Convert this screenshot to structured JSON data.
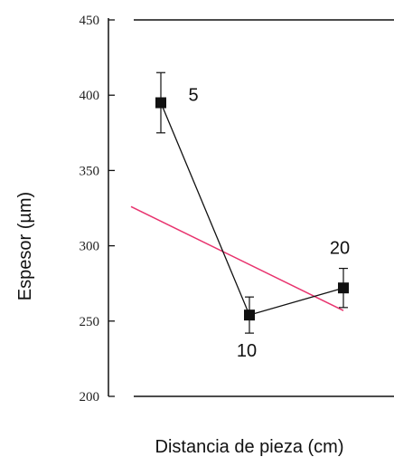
{
  "chart_data": {
    "type": "line",
    "xlabel": "Distancia de pieza (cm)",
    "ylabel": "Espesor (µm)",
    "ylim": [
      200,
      450
    ],
    "yticks": [
      200,
      250,
      300,
      350,
      400,
      450
    ],
    "grid": false,
    "series": [
      {
        "x": [
          5,
          10,
          20
        ],
        "values": [
          395,
          254,
          272
        ],
        "error": [
          20,
          12,
          13
        ],
        "point_labels": [
          "5",
          "10",
          "20"
        ],
        "color": "#111111",
        "marker": "square"
      },
      {
        "line_start": 326,
        "line_end": 257,
        "color": "#e8336e"
      }
    ]
  }
}
